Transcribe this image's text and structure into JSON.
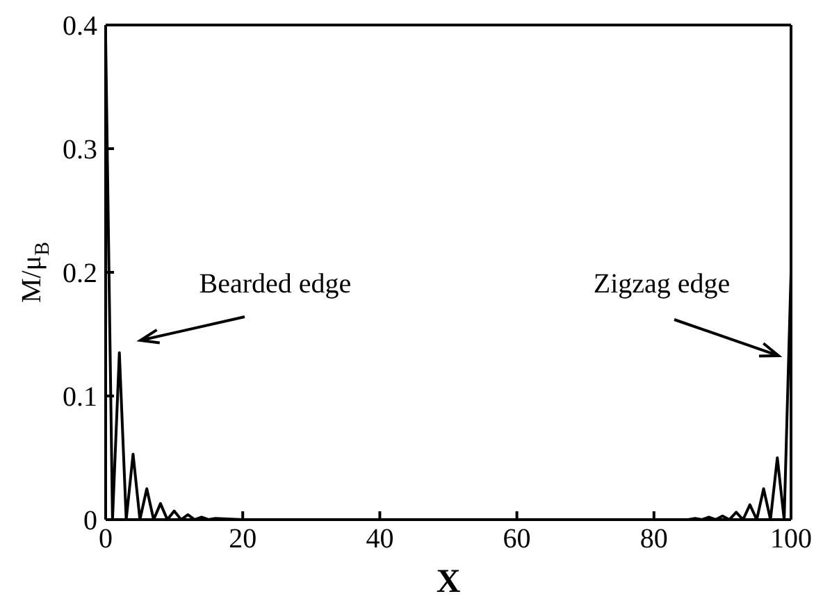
{
  "chart_data": {
    "type": "line",
    "xlabel": "X",
    "ylabel": "M/μ$_{B}$",
    "x": [
      0,
      1,
      2,
      3,
      4,
      5,
      6,
      7,
      8,
      9,
      10,
      11,
      12,
      13,
      14,
      15,
      16,
      20,
      30,
      40,
      50,
      60,
      70,
      80,
      85,
      86,
      87,
      88,
      89,
      90,
      91,
      92,
      93,
      94,
      95,
      96,
      97,
      98,
      99,
      100
    ],
    "series": [
      {
        "color": "#000000",
        "values": [
          0.39,
          0.0,
          0.135,
          0.0,
          0.053,
          0.0,
          0.025,
          0.0,
          0.013,
          0.0,
          0.007,
          0.0,
          0.004,
          0.0,
          0.002,
          0.0,
          0.001,
          0.0,
          0.0,
          0.0,
          0.0,
          0.0,
          0.0,
          0.0,
          0.0,
          0.001,
          0.0,
          0.002,
          0.0,
          0.003,
          0.0,
          0.006,
          0.0,
          0.012,
          0.0,
          0.025,
          0.0,
          0.05,
          0.0,
          0.2
        ]
      }
    ],
    "xlim": [
      0,
      100
    ],
    "xticks": [
      0,
      20,
      40,
      60,
      80,
      100
    ],
    "ylim": [
      0,
      0.4
    ],
    "yticks": [
      0,
      0.1,
      0.2,
      0.3,
      0.4
    ],
    "grid": false,
    "legend": false,
    "marker": "none",
    "line_style": "solid",
    "annotations": [
      "Bearded edge",
      "Zigzag edge"
    ]
  }
}
